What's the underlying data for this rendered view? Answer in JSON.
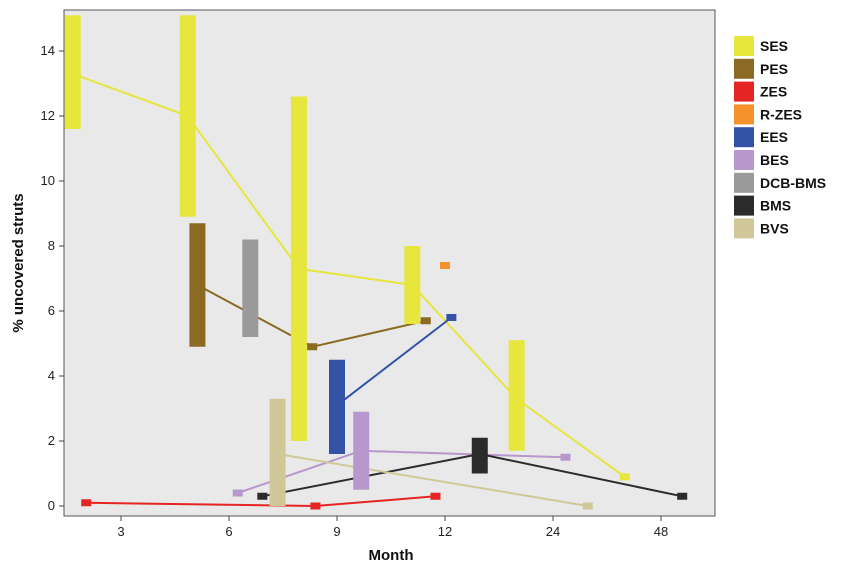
{
  "chart_data": {
    "type": "line",
    "title": "",
    "xlabel": "Month",
    "ylabel": "% uncovered struts",
    "x_scale": "log-categorical",
    "x_ticks": [
      "3",
      "6",
      "9",
      "12",
      "24",
      "48"
    ],
    "y_ticks": [
      "0",
      "2",
      "4",
      "6",
      "8",
      "10",
      "12",
      "14"
    ],
    "ylim": [
      0,
      15.2
    ],
    "grid": false,
    "legend_position": "right",
    "colors": {
      "SES": "#e6e63c",
      "PES": "#8b6a23",
      "ZES": "#e52424",
      "R-ZES": "#f5922c",
      "EES": "#3352a8",
      "BES": "#b898cc",
      "DCB-BMS": "#9a9a9a",
      "BMS": "#2b2b2b",
      "BVS": "#d0c898"
    },
    "series": [
      {
        "name": "SES",
        "x": [
          2.2,
          4.6,
          7.8,
          11.0,
          19.0,
          38.0
        ],
        "y": [
          13.3,
          12.0,
          7.3,
          6.8,
          3.3,
          0.9
        ],
        "ranges": [
          [
            11.6,
            15.1
          ],
          [
            8.9,
            15.1
          ],
          [
            2.0,
            12.6
          ],
          [
            5.6,
            8.0
          ],
          [
            1.7,
            5.1
          ],
          [
            0.8,
            1.0
          ]
        ]
      },
      {
        "name": "PES",
        "x": [
          4.9,
          8.2,
          11.4
        ],
        "y": [
          6.8,
          4.9,
          5.7
        ],
        "ranges": [
          [
            4.9,
            8.7
          ],
          [
            4.8,
            5.0
          ],
          [
            5.6,
            5.8
          ]
        ]
      },
      {
        "name": "ZES",
        "x": [
          2.4,
          8.3,
          11.7
        ],
        "y": [
          0.1,
          0.0,
          0.3
        ],
        "ranges": [
          [
            0.0,
            0.2
          ],
          [
            -0.1,
            0.1
          ],
          [
            0.2,
            0.4
          ]
        ]
      },
      {
        "name": "R-ZES",
        "x": [
          12.0
        ],
        "y": [
          7.4
        ],
        "ranges": [
          [
            7.3,
            7.5
          ]
        ]
      },
      {
        "name": "EES",
        "x": [
          9.0,
          12.5
        ],
        "y": [
          3.1,
          5.8
        ],
        "ranges": [
          [
            1.6,
            4.5
          ],
          [
            5.7,
            5.9
          ]
        ]
      },
      {
        "name": "BES",
        "x": [
          6.2,
          9.6,
          26.0
        ],
        "y": [
          0.4,
          1.7,
          1.5
        ],
        "ranges": [
          [
            0.3,
            0.5
          ],
          [
            0.5,
            2.9
          ],
          [
            1.4,
            1.6
          ]
        ]
      },
      {
        "name": "DCB-BMS",
        "x": [
          6.5
        ],
        "y": [
          6.7
        ],
        "ranges": [
          [
            5.2,
            8.2
          ]
        ]
      },
      {
        "name": "BMS",
        "x": [
          6.8,
          15.0,
          55.0
        ],
        "y": [
          0.3,
          1.6,
          0.3
        ],
        "ranges": [
          [
            0.2,
            0.4
          ],
          [
            1.0,
            2.1
          ],
          [
            0.2,
            0.4
          ]
        ]
      },
      {
        "name": "BVS",
        "x": [
          7.2,
          30.0
        ],
        "y": [
          1.6,
          0.0
        ],
        "ranges": [
          [
            0.0,
            3.3
          ],
          [
            -0.1,
            0.1
          ]
        ]
      }
    ]
  }
}
